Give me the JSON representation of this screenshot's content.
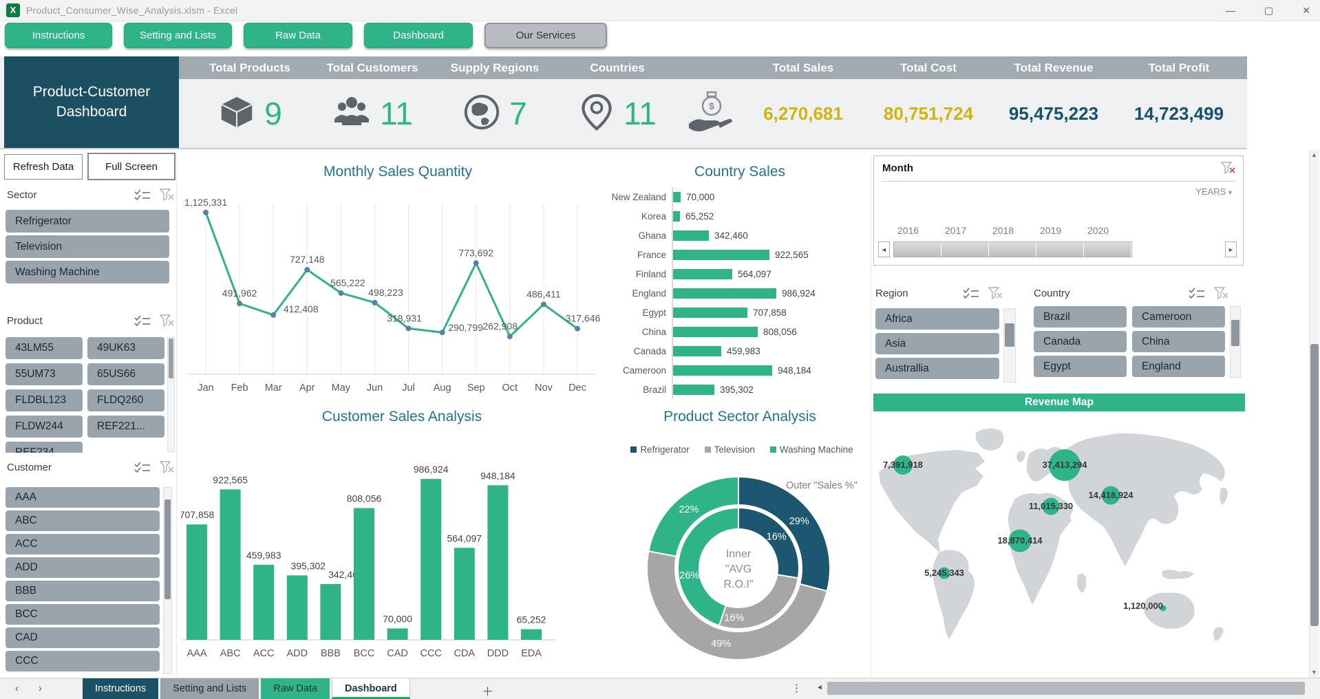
{
  "window": {
    "title": "Product_Consumer_Wise_Analysis.xlsm - Excel",
    "app_icon_glyph": "X",
    "controls": {
      "minimize": "—",
      "maximize": "▢",
      "close": "✕"
    }
  },
  "nav_buttons": [
    {
      "label": "Instructions",
      "style": "green"
    },
    {
      "label": "Setting and Lists",
      "style": "green"
    },
    {
      "label": "Raw Data",
      "style": "green"
    },
    {
      "label": "Dashboard",
      "style": "green"
    },
    {
      "label": "Our Services",
      "style": "gray"
    }
  ],
  "header": {
    "title_line1": "Product-Customer",
    "title_line2": "Dashboard",
    "count_kpis": [
      {
        "label": "Total Products",
        "icon": "cube-icon",
        "value": "9"
      },
      {
        "label": "Total Customers",
        "icon": "people-icon",
        "value": "11"
      },
      {
        "label": "Supply Regions",
        "icon": "globe-icon",
        "value": "7"
      },
      {
        "label": "Countries",
        "icon": "location-pin-icon",
        "value": "11"
      }
    ],
    "money_icon": "money-hand-icon",
    "money_kpis": [
      {
        "label": "Total Sales",
        "value": "6,270,681",
        "color": "gold"
      },
      {
        "label": "Total Cost",
        "value": "80,751,724",
        "color": "gold"
      },
      {
        "label": "Total Revenue",
        "value": "95,475,223",
        "color": "navy"
      },
      {
        "label": "Total Profit",
        "value": "14,723,499",
        "color": "navy"
      }
    ]
  },
  "sidebar": {
    "refresh_button": "Refresh Data",
    "fullscreen_button": "Full Screen",
    "slicers": {
      "sector": {
        "title": "Sector",
        "items": [
          "Refrigerator",
          "Television",
          "Washing Machine"
        ]
      },
      "product": {
        "title": "Product",
        "items": [
          "43LM55",
          "49UK63",
          "55UM73",
          "65US66",
          "FLDBL123",
          "FLDQ260",
          "FLDW244",
          "REF221...",
          "REF234"
        ]
      },
      "customer": {
        "title": "Customer",
        "items": [
          "AAA",
          "ABC",
          "ACC",
          "ADD",
          "BBB",
          "BCC",
          "CAD",
          "CCC"
        ]
      }
    }
  },
  "timeline": {
    "title": "Month",
    "level": "YEARS",
    "years": [
      "2016",
      "2017",
      "2018",
      "2019",
      "2020"
    ]
  },
  "region_slicer": {
    "title": "Region",
    "items": [
      "Africa",
      "Asia",
      "Australlia"
    ]
  },
  "country_slicer": {
    "title": "Country",
    "items": [
      "Brazil",
      "Cameroon",
      "Canada",
      "China",
      "Egypt",
      "England"
    ]
  },
  "map_panel": {
    "title": "Revenue Map"
  },
  "sheet_tabs": [
    {
      "label": "Instructions",
      "style": "teal"
    },
    {
      "label": "Setting and Lists",
      "style": "gray"
    },
    {
      "label": "Raw Data",
      "style": "green"
    },
    {
      "label": "Dashboard",
      "style": "active"
    }
  ],
  "chart_data": [
    {
      "type": "line",
      "title": "Monthly Sales Quantity",
      "categories": [
        "Jan",
        "Feb",
        "Mar",
        "Apr",
        "May",
        "Jun",
        "Jul",
        "Aug",
        "Sep",
        "Oct",
        "Nov",
        "Dec"
      ],
      "values": [
        1125331,
        491962,
        412408,
        727148,
        565222,
        498223,
        318931,
        290799,
        773692,
        262908,
        486411,
        317646
      ],
      "ylim": [
        0,
        1200000
      ],
      "line_color": "#2eb488",
      "grid": true,
      "legend_position": "none"
    },
    {
      "type": "bar",
      "orientation": "horizontal",
      "title": "Country Sales",
      "categories": [
        "New Zealand",
        "Korea",
        "Ghana",
        "France",
        "Finland",
        "England",
        "Egypt",
        "China",
        "Canada",
        "Cameroon",
        "Brazil"
      ],
      "values": [
        70000,
        65252,
        342460,
        922565,
        564097,
        986924,
        707858,
        808056,
        459983,
        948184,
        395302
      ],
      "xlim": [
        0,
        1000000
      ],
      "bar_color": "#2eb488",
      "legend_position": "none"
    },
    {
      "type": "bar",
      "orientation": "vertical",
      "title": "Customer Sales Analysis",
      "categories": [
        "AAA",
        "ABC",
        "ACC",
        "ADD",
        "BBB",
        "BCC",
        "CAD",
        "CCC",
        "CDA",
        "DDD",
        "EDA"
      ],
      "values": [
        707858,
        922565,
        459983,
        395302,
        342460,
        808056,
        70000,
        986924,
        564097,
        948184,
        65252
      ],
      "ylim": [
        0,
        1050000
      ],
      "bar_color": "#2eb488",
      "legend_position": "none"
    },
    {
      "type": "donut",
      "title": "Product Sector Analysis",
      "legend": [
        "Refrigerator",
        "Television",
        "Washing Machine"
      ],
      "colors": [
        "#1d566f",
        "#a6a6a6",
        "#2eb488"
      ],
      "outer_ring_label": "Outer \"Sales %\"",
      "outer_values_pct": [
        29,
        49,
        22
      ],
      "inner_values_pct": [
        16,
        16,
        26
      ],
      "center_label_lines": [
        "Inner",
        "\"AVG",
        "R.O.I\""
      ],
      "legend_position": "top"
    },
    {
      "type": "map-bubbles",
      "title": "Revenue Map",
      "points": [
        {
          "place": "north-america",
          "value": 7391918,
          "label": "7,391,918"
        },
        {
          "place": "russia",
          "value": 37413294,
          "label": "37,413,294"
        },
        {
          "place": "china",
          "value": 14418924,
          "label": "14,418,924"
        },
        {
          "place": "middle-east",
          "value": 11015330,
          "label": "11,015,330"
        },
        {
          "place": "west-africa",
          "value": 18870414,
          "label": "18,870,414"
        },
        {
          "place": "brazil",
          "value": 5245343,
          "label": "5,245,343"
        },
        {
          "place": "australia",
          "value": 1120000,
          "label": "1,120,000"
        }
      ]
    }
  ],
  "colors": {
    "accent_green": "#2eb488",
    "teal_dark": "#1a5062",
    "gold": "#d1b40c",
    "navy": "#17516d",
    "slicer_gray": "#9aa4ad",
    "header_gray": "#a2aab1",
    "chart_title_blue": "#1e7494"
  }
}
